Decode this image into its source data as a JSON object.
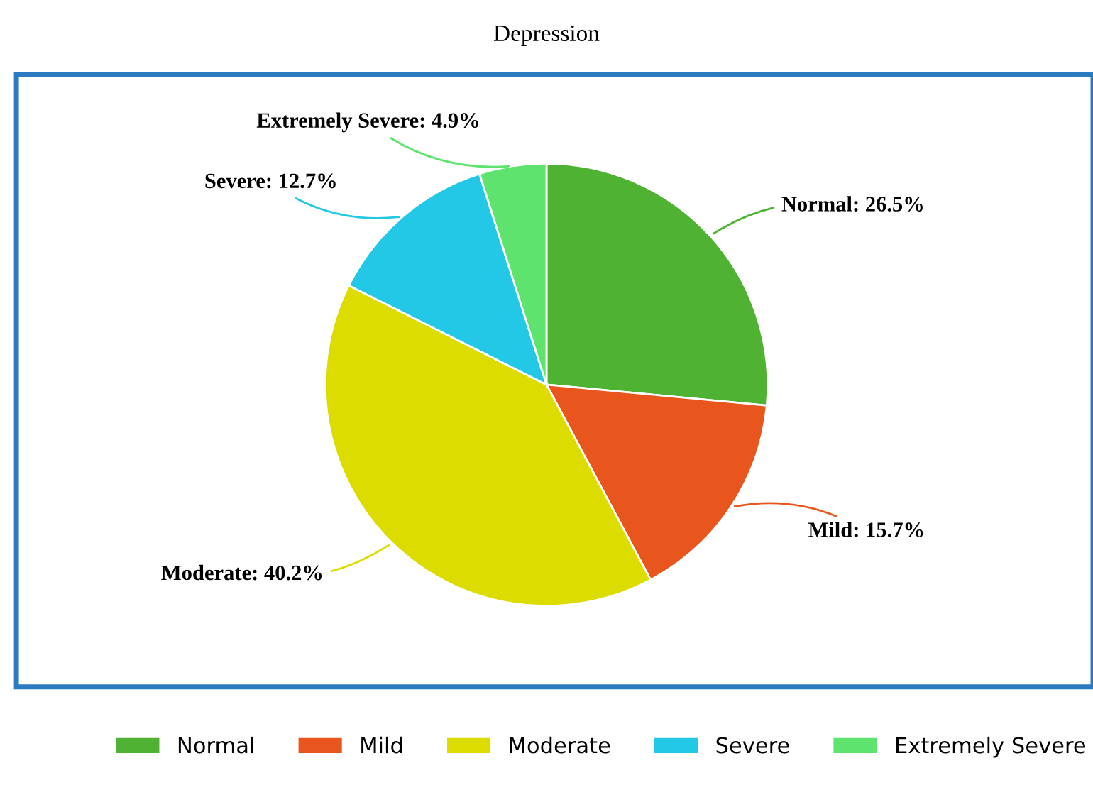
{
  "chart_data": {
    "type": "pie",
    "title": "Depression",
    "categories": [
      "Normal",
      "Mild",
      "Moderate",
      "Severe",
      "Extremely Severe"
    ],
    "values": [
      26.5,
      15.7,
      40.2,
      12.7,
      4.9
    ],
    "value_labels": [
      "Normal: 26.5%",
      "Mild: 15.7%",
      "Moderate: 40.2%",
      "Severe: 12.7%",
      "Extremely Severe: 4.9%"
    ],
    "colors": [
      "#4fb233",
      "#e8561e",
      "#dcdc00",
      "#22c8e5",
      "#5fe36f"
    ],
    "legend": "bottom"
  }
}
